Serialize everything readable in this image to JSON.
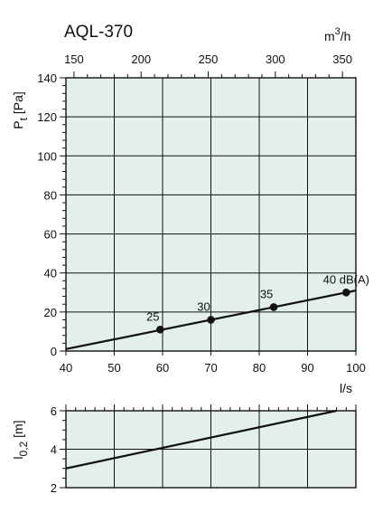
{
  "chart_data": [
    {
      "type": "line",
      "title": "AQL-370",
      "xlabel": "l/s",
      "ylabel": "Pt [Pa]",
      "xlim": [
        40,
        100
      ],
      "ylim": [
        0,
        140
      ],
      "x_ticks": [
        40,
        50,
        60,
        70,
        80,
        90,
        100
      ],
      "y_ticks": [
        0,
        20,
        40,
        60,
        80,
        100,
        120,
        140
      ],
      "secondary_x_axis": {
        "label": "m3/h",
        "ticks": [
          150,
          200,
          250,
          300,
          350
        ],
        "factor_per_ls": 3.6
      },
      "grid": true,
      "background_color": "#e2efec",
      "series": [
        {
          "x": [
            40,
            100
          ],
          "y": [
            1,
            31
          ]
        }
      ],
      "points": [
        {
          "x": 59.5,
          "y": 11,
          "label": "25"
        },
        {
          "x": 70,
          "y": 16,
          "label": "30"
        },
        {
          "x": 83,
          "y": 22.5,
          "label": "35"
        },
        {
          "x": 98,
          "y": 30,
          "label": "40 dB(A)"
        }
      ]
    },
    {
      "type": "line",
      "xlabel": "",
      "ylabel": "l0,2 [m]",
      "xlim": [
        40,
        100
      ],
      "ylim": [
        2,
        6
      ],
      "y_ticks": [
        2,
        4,
        6
      ],
      "grid": true,
      "background_color": "#e2efec",
      "series": [
        {
          "x": [
            40,
            96
          ],
          "y": [
            3,
            6
          ]
        }
      ]
    }
  ]
}
